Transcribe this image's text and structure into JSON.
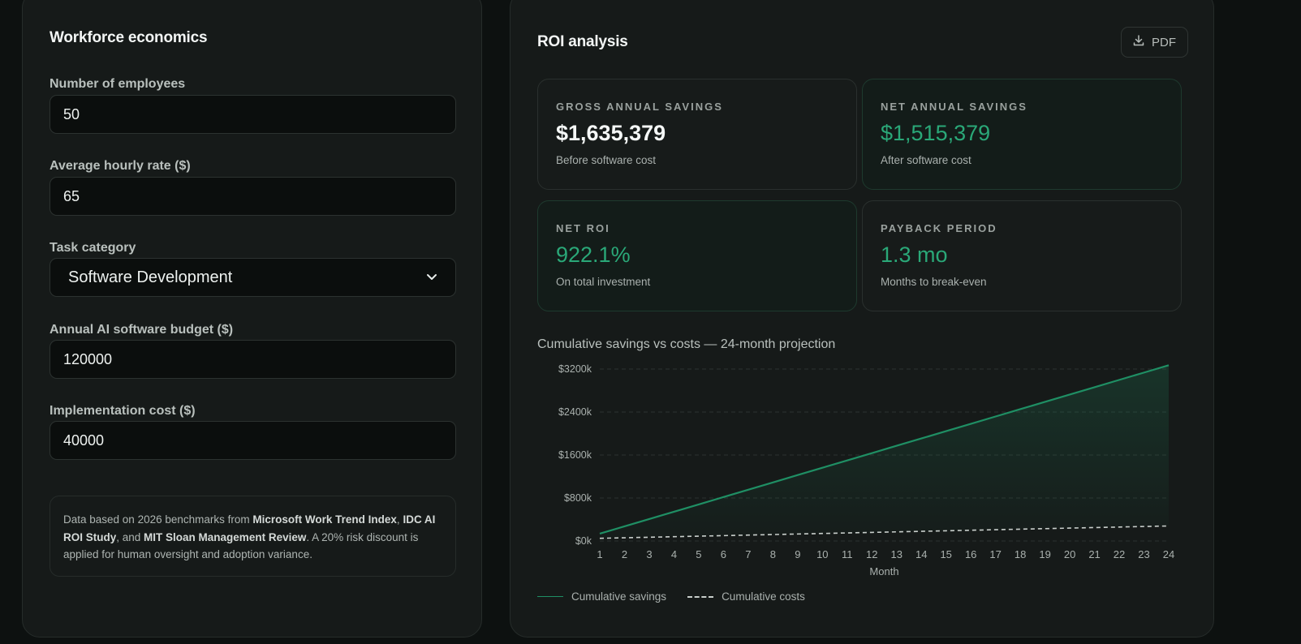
{
  "workforce": {
    "title": "Workforce economics",
    "fields": {
      "employees": {
        "label": "Number of employees",
        "value": "50"
      },
      "hourly_rate": {
        "label": "Average hourly rate ($)",
        "value": "65"
      },
      "task_category": {
        "label": "Task category",
        "value": "Software Development"
      },
      "software_budget": {
        "label": "Annual AI software budget ($)",
        "value": "120000"
      },
      "implementation_cost": {
        "label": "Implementation cost ($)",
        "value": "40000"
      }
    },
    "note": {
      "p1": "Data based on 2026 benchmarks from ",
      "b1": "Microsoft Work Trend Index",
      "p2": ", ",
      "b2": "IDC AI ROI Study",
      "p3": ", and ",
      "b3": "MIT Sloan Management Review",
      "p4": ". A 20% risk discount is applied for human oversight and adoption variance."
    }
  },
  "roi": {
    "title": "ROI analysis",
    "pdf_label": "PDF",
    "pdf_icon": "download-icon",
    "cards": {
      "gross": {
        "label": "GROSS ANNUAL SAVINGS",
        "value": "$1,635,379",
        "sub": "Before software cost"
      },
      "net": {
        "label": "NET ANNUAL SAVINGS",
        "value": "$1,515,379",
        "sub": "After software cost"
      },
      "roi": {
        "label": "NET ROI",
        "value": "922.1%",
        "sub": "On total investment"
      },
      "payback": {
        "label": "PAYBACK PERIOD",
        "value": "1.3 mo",
        "sub": "Months to break-even"
      }
    },
    "chart_title": "Cumulative savings vs costs — 24-month projection"
  },
  "colors": {
    "accent_green": "#2aa878",
    "line_green": "#1f8f64",
    "cost_line": "#c9cfcc"
  },
  "chart_data": {
    "type": "line",
    "xlabel": "Month",
    "ylabel": "",
    "x": [
      1,
      2,
      3,
      4,
      5,
      6,
      7,
      8,
      9,
      10,
      11,
      12,
      13,
      14,
      15,
      16,
      17,
      18,
      19,
      20,
      21,
      22,
      23,
      24
    ],
    "ylim": [
      0,
      3200
    ],
    "yticks": [
      0,
      800,
      1600,
      2400,
      3200
    ],
    "ytick_labels": [
      "$0k",
      "$800k",
      "$1600k",
      "$2400k",
      "$3200k"
    ],
    "grid": true,
    "legend_position": "bottom-left",
    "series": [
      {
        "name": "Cumulative savings",
        "style": "solid-area",
        "values": [
          136,
          273,
          409,
          545,
          681,
          818,
          954,
          1090,
          1227,
          1363,
          1499,
          1635,
          1772,
          1908,
          2044,
          2180,
          2317,
          2453,
          2589,
          2726,
          2862,
          2998,
          3134,
          3271
        ]
      },
      {
        "name": "Cumulative costs",
        "style": "dashed",
        "values": [
          50,
          60,
          70,
          80,
          90,
          100,
          110,
          120,
          130,
          140,
          150,
          160,
          170,
          180,
          190,
          200,
          210,
          220,
          230,
          240,
          250,
          260,
          270,
          280
        ]
      }
    ]
  }
}
